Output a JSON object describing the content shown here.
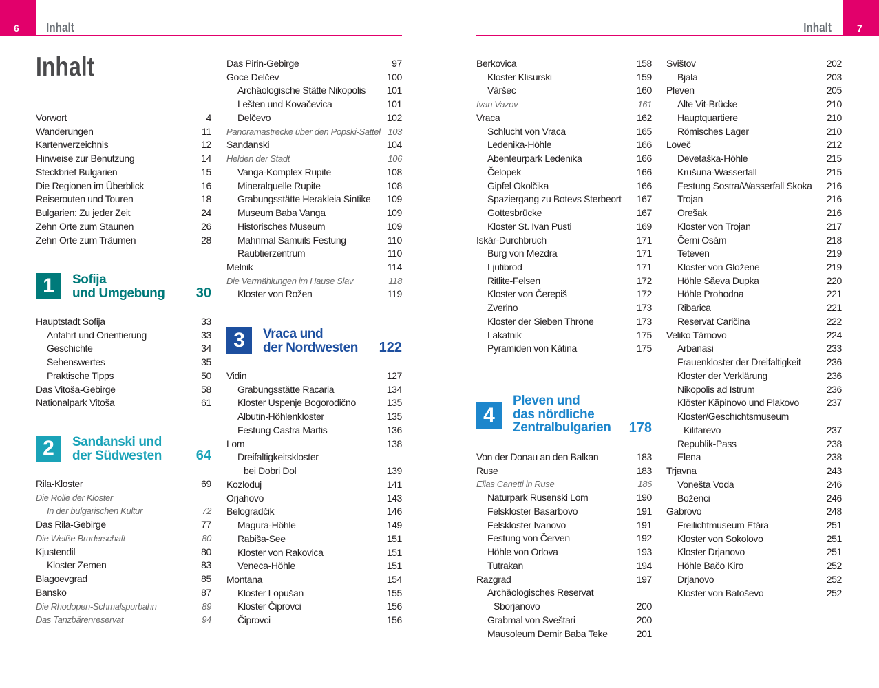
{
  "header": {
    "left_page": "6",
    "right_page": "7",
    "running_head": "Inhalt",
    "accent": "#e2006b"
  },
  "title": "Inhalt",
  "col1a": [
    {
      "t": "Vorwort",
      "p": "4"
    },
    {
      "t": "Wanderungen",
      "p": "11"
    },
    {
      "t": "Kartenverzeichnis",
      "p": "12"
    },
    {
      "t": "Hinweise zur Benutzung",
      "p": "14"
    },
    {
      "t": "Steckbrief Bulgarien",
      "p": "15"
    },
    {
      "t": "Die Regionen im Überblick",
      "p": "16"
    },
    {
      "t": "Reiserouten und Touren",
      "p": "18"
    },
    {
      "t": "Bulgarien: Zu jeder Zeit",
      "p": "24"
    },
    {
      "t": "Zehn Orte zum Staunen",
      "p": "26"
    },
    {
      "t": "Zehn Orte zum Träumen",
      "p": "28"
    }
  ],
  "sections": [
    {
      "num": "1",
      "lines": [
        "Sofija",
        "und Umgebung"
      ],
      "page": "30",
      "color": "#007a7a"
    },
    {
      "num": "2",
      "lines": [
        "Sandanski und",
        "der Südwesten"
      ],
      "page": "64",
      "color": "#1aa3b8"
    },
    {
      "num": "3",
      "lines": [
        "Vraca und",
        "der Nordwesten"
      ],
      "page": "122",
      "color": "#1d4f9f"
    },
    {
      "num": "4",
      "lines": [
        "Pleven und",
        "das nördliche",
        "Zentralbulgarien"
      ],
      "page": "178",
      "color": "#1d86cc"
    }
  ],
  "col1b": [
    {
      "t": "Hauptstadt Sofija",
      "p": "33"
    },
    {
      "t": "Anfahrt und Orientierung",
      "p": "33",
      "l": 1
    },
    {
      "t": "Geschichte",
      "p": "34",
      "l": 1
    },
    {
      "t": "Sehenswertes",
      "p": "35",
      "l": 1
    },
    {
      "t": "Praktische Tipps",
      "p": "50",
      "l": 1
    },
    {
      "t": "Das Vitoša-Gebirge",
      "p": "58"
    },
    {
      "t": "Nationalpark Vitoša",
      "p": "61"
    }
  ],
  "col1c": [
    {
      "t": "Rila-Kloster",
      "p": "69"
    },
    {
      "t": "Die Rolle der Klöster",
      "p": "",
      "i": true
    },
    {
      "t": "In der bulgarischen Kultur",
      "p": "72",
      "i": true,
      "l": 1
    },
    {
      "t": "Das Rila-Gebirge",
      "p": "77"
    },
    {
      "t": "Die Weiße Bruderschaft",
      "p": "80",
      "i": true
    },
    {
      "t": "Kjustendil",
      "p": "80"
    },
    {
      "t": "Kloster Zemen",
      "p": "83",
      "l": 1
    },
    {
      "t": "Blagoevgrad",
      "p": "85"
    },
    {
      "t": "Bansko",
      "p": "87"
    },
    {
      "t": "Die Rhodopen-Schmalspurbahn",
      "p": "89",
      "i": true
    },
    {
      "t": "Das Tanzbärenreservat",
      "p": "94",
      "i": true
    }
  ],
  "col2a": [
    {
      "t": "Das Pirin-Gebirge",
      "p": "97"
    },
    {
      "t": "Goce Delčev",
      "p": "100"
    },
    {
      "t": "Archäologische Stätte Nikopolis",
      "p": "101",
      "l": 1
    },
    {
      "t": "Lešten und Kovačevica",
      "p": "101",
      "l": 1
    },
    {
      "t": "Delčevo",
      "p": "102",
      "l": 1
    },
    {
      "t": "Panoramastrecke über den Popski-Sattel",
      "p": "103",
      "i": true
    },
    {
      "t": "Sandanski",
      "p": "104"
    },
    {
      "t": "Helden der Stadt",
      "p": "106",
      "i": true
    },
    {
      "t": "Vanga-Komplex Rupite",
      "p": "108",
      "l": 1
    },
    {
      "t": "Mineralquelle Rupite",
      "p": "108",
      "l": 1
    },
    {
      "t": "Grabungsstätte Herakleia Sintike",
      "p": "109",
      "l": 1
    },
    {
      "t": "Museum Baba Vanga",
      "p": "109",
      "l": 1
    },
    {
      "t": "Historisches Museum",
      "p": "109",
      "l": 1
    },
    {
      "t": "Mahnmal Samuils Festung",
      "p": "110",
      "l": 1
    },
    {
      "t": "Raubtierzentrum",
      "p": "110",
      "l": 1
    },
    {
      "t": "Melnik",
      "p": "114"
    },
    {
      "t": "Die Vermählungen im Hause Slav",
      "p": "118",
      "i": true
    },
    {
      "t": "Kloster von Rožen",
      "p": "119",
      "l": 1
    }
  ],
  "col2b": [
    {
      "t": "Vidin",
      "p": "127"
    },
    {
      "t": "Grabungsstätte Racaria",
      "p": "134",
      "l": 1
    },
    {
      "t": "Kloster Uspenje Bogorodično",
      "p": "135",
      "l": 1
    },
    {
      "t": "Albutin-Höhlenkloster",
      "p": "135",
      "l": 1
    },
    {
      "t": "Festung Castra Martis",
      "p": "136",
      "l": 1
    },
    {
      "t": "Lom",
      "p": "138"
    },
    {
      "t": "Dreifaltigkeitskloster",
      "p": "",
      "l": 1
    },
    {
      "t": "bei Dobri Dol",
      "p": "139",
      "l": 2
    },
    {
      "t": "Kozloduj",
      "p": "141"
    },
    {
      "t": "Orjahovo",
      "p": "143"
    },
    {
      "t": "Belogradčik",
      "p": "146"
    },
    {
      "t": "Magura-Höhle",
      "p": "149",
      "l": 1
    },
    {
      "t": "Rabiša-See",
      "p": "151",
      "l": 1
    },
    {
      "t": "Kloster von Rakovica",
      "p": "151",
      "l": 1
    },
    {
      "t": "Veneca-Höhle",
      "p": "151",
      "l": 1
    },
    {
      "t": "Montana",
      "p": "154"
    },
    {
      "t": "Kloster Lopušan",
      "p": "155",
      "l": 1
    },
    {
      "t": "Kloster Čiprovci",
      "p": "156",
      "l": 1
    },
    {
      "t": "Čiprovci",
      "p": "156",
      "l": 1
    }
  ],
  "col3a": [
    {
      "t": "Berkovica",
      "p": "158"
    },
    {
      "t": "Kloster Klisurski",
      "p": "159",
      "l": 1
    },
    {
      "t": "Văršec",
      "p": "160",
      "l": 1
    },
    {
      "t": "Ivan Vazov",
      "p": "161",
      "i": true
    },
    {
      "t": "Vraca",
      "p": "162"
    },
    {
      "t": "Schlucht von Vraca",
      "p": "165",
      "l": 1
    },
    {
      "t": "Ledenika-Höhle",
      "p": "166",
      "l": 1
    },
    {
      "t": "Abenteurpark Ledenika",
      "p": "166",
      "l": 1
    },
    {
      "t": "Čelopek",
      "p": "166",
      "l": 1
    },
    {
      "t": "Gipfel Okolčika",
      "p": "166",
      "l": 1
    },
    {
      "t": "Spaziergang zu Botevs Sterbeort",
      "p": "167",
      "l": 1
    },
    {
      "t": "Gottesbrücke",
      "p": "167",
      "l": 1
    },
    {
      "t": "Kloster St. Ivan Pusti",
      "p": "169",
      "l": 1
    },
    {
      "t": "Iskăr-Durchbruch",
      "p": "171"
    },
    {
      "t": "Burg von Mezdra",
      "p": "171",
      "l": 1
    },
    {
      "t": "Ljutibrod",
      "p": "171",
      "l": 1
    },
    {
      "t": "Ritlite-Felsen",
      "p": "172",
      "l": 1
    },
    {
      "t": "Kloster von Čerepiš",
      "p": "172",
      "l": 1
    },
    {
      "t": "Zverino",
      "p": "173",
      "l": 1
    },
    {
      "t": "Kloster der Sieben Throne",
      "p": "173",
      "l": 1
    },
    {
      "t": "Lakatnik",
      "p": "175",
      "l": 1
    },
    {
      "t": "Pyramiden von Kătina",
      "p": "175",
      "l": 1
    }
  ],
  "col3b": [
    {
      "t": "Von der Donau an den Balkan",
      "p": "183"
    },
    {
      "t": "Ruse",
      "p": "183"
    },
    {
      "t": "Elias Canetti in Ruse",
      "p": "186",
      "i": true
    },
    {
      "t": "Naturpark Rusenski Lom",
      "p": "190",
      "l": 1
    },
    {
      "t": "Felskloster Basarbovo",
      "p": "191",
      "l": 1
    },
    {
      "t": "Felskloster Ivanovo",
      "p": "191",
      "l": 1
    },
    {
      "t": "Festung von Červen",
      "p": "192",
      "l": 1
    },
    {
      "t": "Höhle von Orlova",
      "p": "193",
      "l": 1
    },
    {
      "t": "Tutrakan",
      "p": "194",
      "l": 1
    },
    {
      "t": "Razgrad",
      "p": "197"
    },
    {
      "t": "Archäologisches Reservat",
      "p": "",
      "l": 1
    },
    {
      "t": "Sborjanovo",
      "p": "200",
      "l": 2
    },
    {
      "t": "Grabmal von Sveštari",
      "p": "200",
      "l": 1
    },
    {
      "t": "Mausoleum Demir Baba Teke",
      "p": "201",
      "l": 1
    }
  ],
  "col4": [
    {
      "t": "Svištov",
      "p": "202"
    },
    {
      "t": "Bjala",
      "p": "203",
      "l": 1
    },
    {
      "t": "Pleven",
      "p": "205"
    },
    {
      "t": "Alte Vit-Brücke",
      "p": "210",
      "l": 1
    },
    {
      "t": "Hauptquartiere",
      "p": "210",
      "l": 1
    },
    {
      "t": "Römisches Lager",
      "p": "210",
      "l": 1
    },
    {
      "t": "Loveč",
      "p": "212"
    },
    {
      "t": "Devetaška-Höhle",
      "p": "215",
      "l": 1
    },
    {
      "t": "Krušuna-Wasserfall",
      "p": "215",
      "l": 1
    },
    {
      "t": "Festung Sostra/Wasserfall Skoka",
      "p": "216",
      "l": 1
    },
    {
      "t": "Trojan",
      "p": "216",
      "l": 1
    },
    {
      "t": "Orešak",
      "p": "216",
      "l": 1
    },
    {
      "t": "Kloster von Trojan",
      "p": "217",
      "l": 1
    },
    {
      "t": "Černi Osăm",
      "p": "218",
      "l": 1
    },
    {
      "t": "Teteven",
      "p": "219",
      "l": 1
    },
    {
      "t": "Kloster von Gložene",
      "p": "219",
      "l": 1
    },
    {
      "t": "Höhle Săeva Dupka",
      "p": "220",
      "l": 1
    },
    {
      "t": "Höhle Prohodna",
      "p": "221",
      "l": 1
    },
    {
      "t": "Ribarica",
      "p": "221",
      "l": 1
    },
    {
      "t": "Reservat Caričina",
      "p": "222",
      "l": 1
    },
    {
      "t": "Veliko Tărnovo",
      "p": "224"
    },
    {
      "t": "Arbanasi",
      "p": "233",
      "l": 1
    },
    {
      "t": "Frauenkloster der Dreifaltigkeit",
      "p": "236",
      "l": 1
    },
    {
      "t": "Kloster der Verklärung",
      "p": "236",
      "l": 1
    },
    {
      "t": "Nikopolis ad Istrum",
      "p": "236",
      "l": 1
    },
    {
      "t": "Klöster Kăpinovo und Plakovo",
      "p": "237",
      "l": 1
    },
    {
      "t": "Kloster/Geschichtsmuseum",
      "p": "",
      "l": 1
    },
    {
      "t": "Kilifarevo",
      "p": "237",
      "l": 2
    },
    {
      "t": "Republik-Pass",
      "p": "238",
      "l": 1
    },
    {
      "t": "Elena",
      "p": "238",
      "l": 1
    },
    {
      "t": "Trjavna",
      "p": "243"
    },
    {
      "t": "Vonešta Voda",
      "p": "246",
      "l": 1
    },
    {
      "t": "Boženci",
      "p": "246",
      "l": 1
    },
    {
      "t": "Gabrovo",
      "p": "248"
    },
    {
      "t": "Freilichtmuseum Etăra",
      "p": "251",
      "l": 1
    },
    {
      "t": "Kloster von Sokolovo",
      "p": "251",
      "l": 1
    },
    {
      "t": "Kloster Drjanovo",
      "p": "251",
      "l": 1
    },
    {
      "t": "Höhle Bačo Kiro",
      "p": "252",
      "l": 1
    },
    {
      "t": "Drjanovo",
      "p": "252",
      "l": 1
    },
    {
      "t": "Kloster von Batoševo",
      "p": "252",
      "l": 1
    }
  ]
}
